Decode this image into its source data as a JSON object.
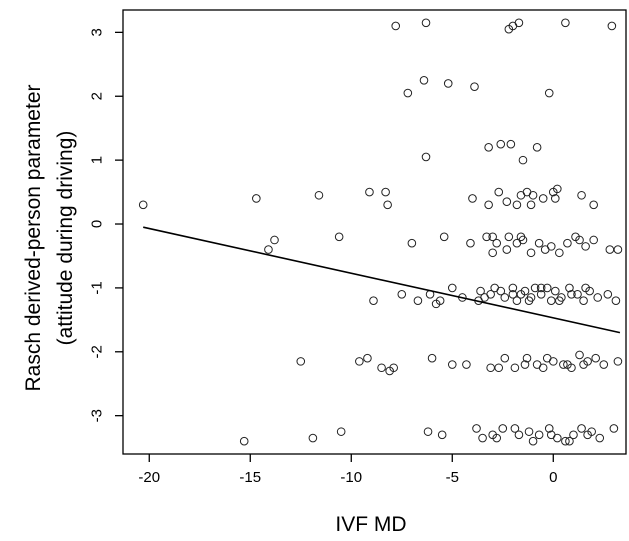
{
  "chart_data": {
    "type": "scatter",
    "title": "",
    "xlabel": "IVF MD",
    "ylabel_line1": "Rasch derived-person parameter",
    "ylabel_line2": "(attitude during driving)",
    "xlim": [
      -21.3,
      3.6
    ],
    "ylim": [
      -3.6,
      3.35
    ],
    "x_ticks": [
      -20,
      -15,
      -10,
      -5,
      0
    ],
    "x_tick_labels": [
      "-20",
      "-15",
      "-10",
      "-5",
      "0"
    ],
    "y_ticks": [
      -3,
      -2,
      -1,
      0,
      1,
      2,
      3
    ],
    "y_tick_labels": [
      "-3",
      "-2",
      "-1",
      "0",
      "1",
      "2",
      "3"
    ],
    "grid": false,
    "legend": "none",
    "marker": "open-circle",
    "regression_line": {
      "x": [
        -20.3,
        3.3
      ],
      "y": [
        -0.05,
        -1.7
      ]
    },
    "points": [
      [
        -20.3,
        0.3
      ],
      [
        -15.3,
        -3.4
      ],
      [
        -14.7,
        0.4
      ],
      [
        -14.1,
        -0.4
      ],
      [
        -13.8,
        -0.25
      ],
      [
        -12.5,
        -2.15
      ],
      [
        -11.9,
        -3.35
      ],
      [
        -11.6,
        0.45
      ],
      [
        -10.6,
        -0.2
      ],
      [
        -10.5,
        -3.25
      ],
      [
        -9.6,
        -2.15
      ],
      [
        -9.2,
        -2.1
      ],
      [
        -9.1,
        0.5
      ],
      [
        -8.9,
        -1.2
      ],
      [
        -8.5,
        -2.25
      ],
      [
        -8.3,
        0.5
      ],
      [
        -8.2,
        0.3
      ],
      [
        -8.1,
        -2.3
      ],
      [
        -7.9,
        -2.25
      ],
      [
        -7.8,
        3.1
      ],
      [
        -7.5,
        -1.1
      ],
      [
        -7.2,
        2.05
      ],
      [
        -7.0,
        -0.3
      ],
      [
        -6.7,
        -1.2
      ],
      [
        -6.4,
        2.25
      ],
      [
        -6.3,
        3.15
      ],
      [
        -6.3,
        1.05
      ],
      [
        -6.2,
        -3.25
      ],
      [
        -6.1,
        -1.1
      ],
      [
        -6.0,
        -2.1
      ],
      [
        -5.8,
        -1.25
      ],
      [
        -5.6,
        -1.2
      ],
      [
        -5.5,
        -3.3
      ],
      [
        -5.4,
        -0.2
      ],
      [
        -5.2,
        2.2
      ],
      [
        -5.0,
        -2.2
      ],
      [
        -5.0,
        -1.0
      ],
      [
        -4.5,
        -1.15
      ],
      [
        -4.3,
        -2.2
      ],
      [
        -4.1,
        -0.3
      ],
      [
        -4.0,
        0.4
      ],
      [
        -3.9,
        2.15
      ],
      [
        -3.8,
        -3.2
      ],
      [
        -3.7,
        -1.2
      ],
      [
        -3.6,
        -1.05
      ],
      [
        -3.5,
        -3.35
      ],
      [
        -3.4,
        -1.15
      ],
      [
        -3.3,
        -0.2
      ],
      [
        -3.2,
        0.3
      ],
      [
        -3.2,
        1.2
      ],
      [
        -3.1,
        -2.25
      ],
      [
        -3.1,
        -1.1
      ],
      [
        -3.0,
        -0.45
      ],
      [
        -3.0,
        -3.3
      ],
      [
        -2.9,
        -1.0
      ],
      [
        -2.8,
        -0.3
      ],
      [
        -2.7,
        0.5
      ],
      [
        -2.7,
        -2.25
      ],
      [
        -2.6,
        1.25
      ],
      [
        -2.6,
        -1.05
      ],
      [
        -2.5,
        -3.2
      ],
      [
        -2.4,
        -1.15
      ],
      [
        -2.3,
        0.35
      ],
      [
        -2.2,
        -0.2
      ],
      [
        -2.2,
        3.05
      ],
      [
        -2.1,
        1.25
      ],
      [
        -2.0,
        3.1
      ],
      [
        -2.0,
        -1.0
      ],
      [
        -1.9,
        -2.25
      ],
      [
        -1.8,
        -0.3
      ],
      [
        -1.8,
        -1.2
      ],
      [
        -1.7,
        3.15
      ],
      [
        -1.7,
        -3.3
      ],
      [
        -1.6,
        0.45
      ],
      [
        -1.5,
        1.0
      ],
      [
        -1.5,
        -0.25
      ],
      [
        -1.4,
        -1.05
      ],
      [
        -1.3,
        0.5
      ],
      [
        -1.3,
        -2.1
      ],
      [
        -1.2,
        -3.25
      ],
      [
        -1.1,
        -0.45
      ],
      [
        -1.1,
        -1.15
      ],
      [
        -1.0,
        0.45
      ],
      [
        -0.9,
        -1.0
      ],
      [
        -0.8,
        1.2
      ],
      [
        -0.8,
        -2.2
      ],
      [
        -0.7,
        -0.3
      ],
      [
        -0.7,
        -3.3
      ],
      [
        -0.6,
        -1.1
      ],
      [
        -0.5,
        0.4
      ],
      [
        -0.5,
        -2.25
      ],
      [
        -0.4,
        -0.4
      ],
      [
        -0.3,
        -1.0
      ],
      [
        -0.2,
        2.05
      ],
      [
        -0.2,
        -3.2
      ],
      [
        -0.1,
        -0.35
      ],
      [
        -0.1,
        -1.2
      ],
      [
        0.0,
        0.5
      ],
      [
        0.0,
        -2.15
      ],
      [
        0.1,
        -1.05
      ],
      [
        0.2,
        -3.35
      ],
      [
        0.2,
        0.55
      ],
      [
        0.3,
        -0.45
      ],
      [
        0.4,
        -1.15
      ],
      [
        0.5,
        -2.2
      ],
      [
        0.6,
        -3.4
      ],
      [
        0.6,
        3.15
      ],
      [
        0.7,
        -0.3
      ],
      [
        0.8,
        -1.0
      ],
      [
        0.9,
        -2.25
      ],
      [
        1.0,
        -3.3
      ],
      [
        1.1,
        -0.2
      ],
      [
        1.2,
        -1.1
      ],
      [
        1.3,
        -2.05
      ],
      [
        1.4,
        0.45
      ],
      [
        1.4,
        -3.2
      ],
      [
        1.5,
        -1.2
      ],
      [
        1.6,
        -0.35
      ],
      [
        1.7,
        -2.15
      ],
      [
        1.8,
        -1.05
      ],
      [
        1.9,
        -3.25
      ],
      [
        2.0,
        -0.25
      ],
      [
        2.0,
        0.3
      ],
      [
        2.1,
        -2.1
      ],
      [
        2.2,
        -1.15
      ],
      [
        2.3,
        -3.35
      ],
      [
        2.5,
        -2.2
      ],
      [
        2.7,
        -1.1
      ],
      [
        2.8,
        -0.4
      ],
      [
        2.9,
        3.1
      ],
      [
        3.0,
        -3.2
      ],
      [
        3.1,
        -1.2
      ],
      [
        3.2,
        -2.15
      ],
      [
        3.2,
        -0.4
      ],
      [
        -2.0,
        -1.1
      ],
      [
        -1.6,
        -1.1
      ],
      [
        -1.2,
        -1.2
      ],
      [
        -0.6,
        -1.0
      ],
      [
        0.3,
        -1.2
      ],
      [
        0.9,
        -1.1
      ],
      [
        1.6,
        -1.0
      ],
      [
        -2.4,
        -2.1
      ],
      [
        -1.4,
        -2.2
      ],
      [
        -0.3,
        -2.1
      ],
      [
        0.7,
        -2.2
      ],
      [
        1.5,
        -2.2
      ],
      [
        -1.9,
        -3.2
      ],
      [
        -1.0,
        -3.4
      ],
      [
        -0.1,
        -3.3
      ],
      [
        0.8,
        -3.4
      ],
      [
        1.7,
        -3.3
      ],
      [
        -2.8,
        -3.35
      ],
      [
        -3.0,
        -0.2
      ],
      [
        -2.3,
        -0.4
      ],
      [
        -1.6,
        -0.2
      ],
      [
        1.3,
        -0.25
      ],
      [
        -1.8,
        0.3
      ],
      [
        -1.1,
        0.3
      ],
      [
        0.1,
        0.4
      ]
    ]
  }
}
